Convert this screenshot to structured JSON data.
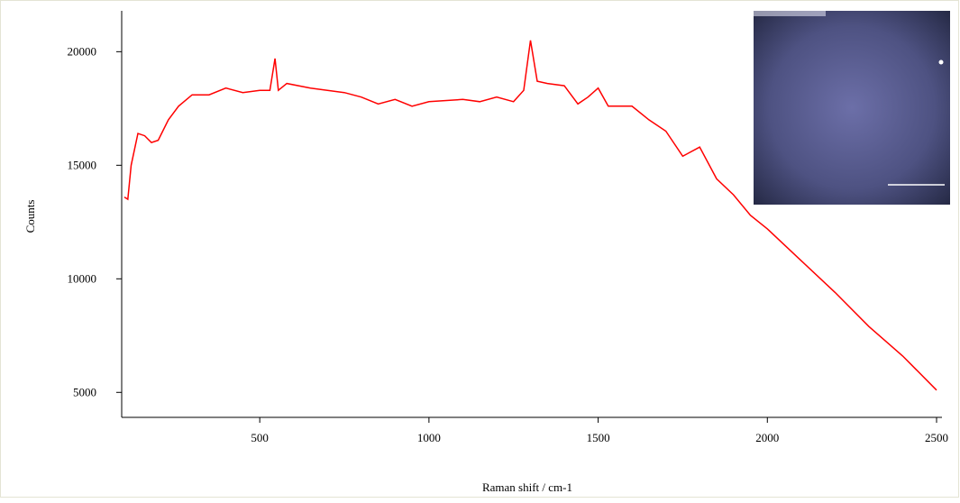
{
  "chart_data": {
    "type": "line",
    "x_label": "Raman shift / cm-1",
    "y_label": "Counts",
    "x": [
      100,
      110,
      120,
      140,
      160,
      180,
      200,
      230,
      260,
      300,
      350,
      400,
      450,
      500,
      530,
      545,
      555,
      580,
      650,
      750,
      800,
      850,
      900,
      950,
      1000,
      1100,
      1150,
      1200,
      1250,
      1280,
      1300,
      1320,
      1350,
      1400,
      1440,
      1470,
      1500,
      1530,
      1600,
      1650,
      1700,
      1750,
      1800,
      1850,
      1900,
      1950,
      2000,
      2100,
      2200,
      2300,
      2400,
      2500
    ],
    "series": [
      {
        "color": "#ff0000",
        "values": [
          13600,
          13500,
          15000,
          16400,
          16300,
          16000,
          16100,
          17000,
          17600,
          18100,
          18100,
          18400,
          18200,
          18300,
          18300,
          19700,
          18300,
          18600,
          18400,
          18200,
          18000,
          17700,
          17900,
          17600,
          17800,
          17900,
          17800,
          18000,
          17800,
          18300,
          20500,
          18700,
          18600,
          18500,
          17700,
          18000,
          18400,
          17600,
          17600,
          17000,
          16500,
          15400,
          15800,
          14400,
          13700,
          12800,
          12200,
          10800,
          9400,
          7900,
          6600,
          5100
        ]
      }
    ],
    "xlim": [
      92,
      2516
    ],
    "ylim": [
      3900,
      21800
    ],
    "xticks": [
      500,
      1000,
      1500,
      2000,
      2500
    ],
    "yticks": [
      5000,
      10000,
      15000,
      20000
    ]
  }
}
